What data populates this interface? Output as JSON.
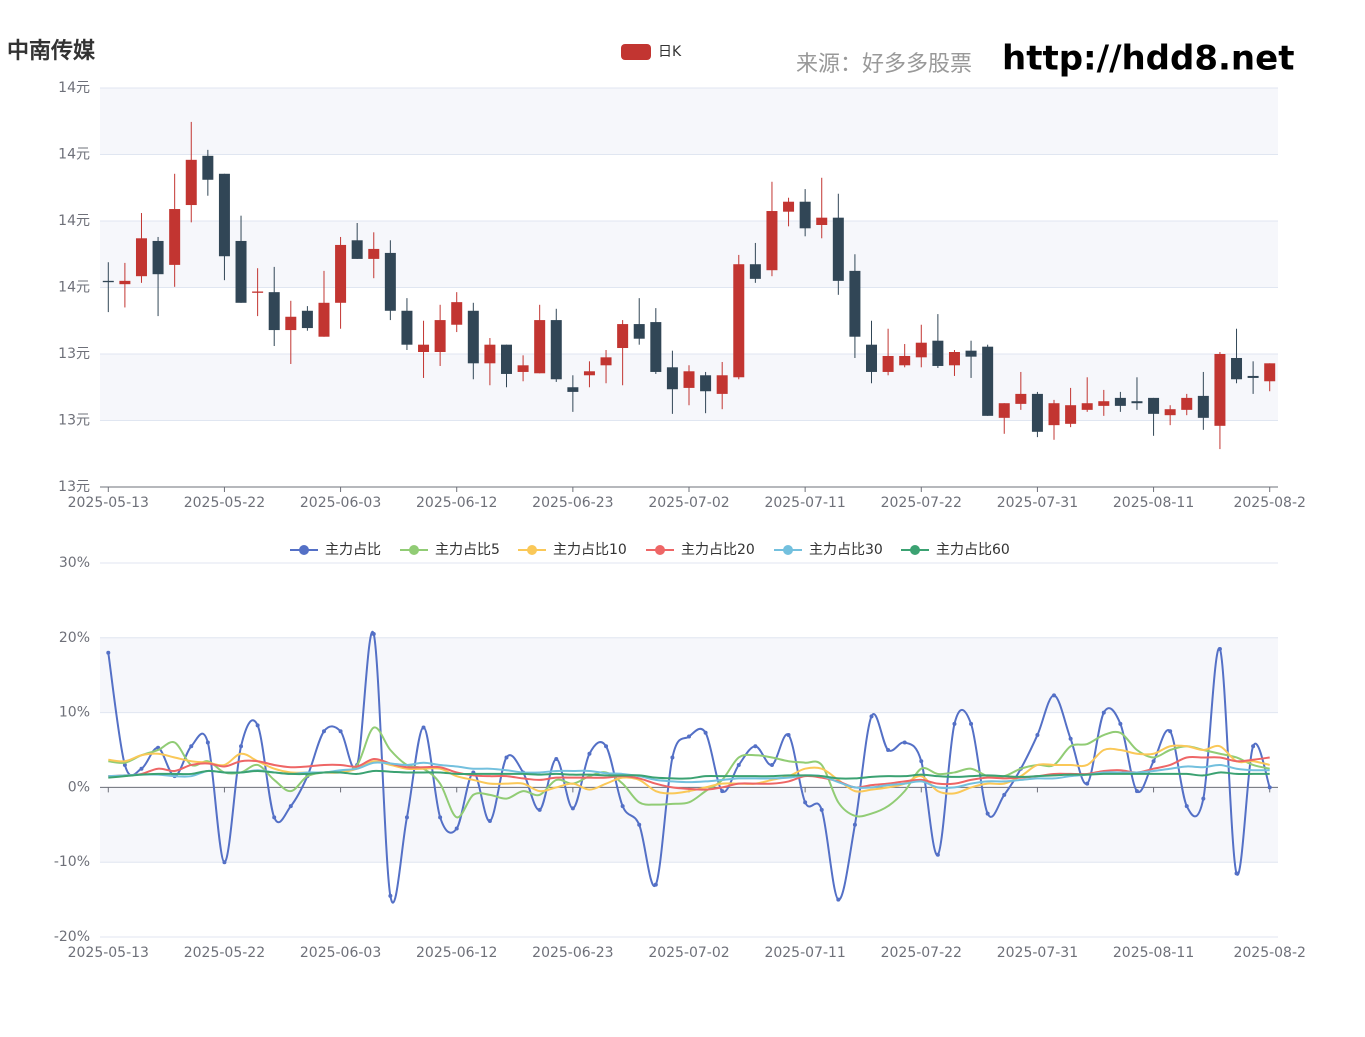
{
  "chart_data": [
    {
      "type": "candlestick",
      "title": "中南传媒",
      "source": "来源：好多多股票",
      "watermark": "http://hdd8.net",
      "categories": [
        "2025-05-13",
        null,
        null,
        null,
        null,
        null,
        null,
        "2025-05-22",
        null,
        null,
        null,
        null,
        null,
        null,
        "2025-06-03",
        null,
        null,
        null,
        null,
        null,
        null,
        "2025-06-12",
        null,
        null,
        null,
        null,
        null,
        null,
        "2025-06-23",
        null,
        null,
        null,
        null,
        null,
        null,
        "2025-07-02",
        null,
        null,
        null,
        null,
        null,
        null,
        "2025-07-11",
        null,
        null,
        null,
        null,
        null,
        null,
        "2025-07-22",
        null,
        null,
        null,
        null,
        null,
        null,
        "2025-07-31",
        null,
        null,
        null,
        null,
        null,
        null,
        "2025-08-11",
        null,
        null,
        null,
        null,
        null,
        null,
        "2025-08-2"
      ],
      "series": [
        {
          "name": "日K",
          "up_color": "#c23531",
          "down_color": "#314656",
          "open": [
            13.51,
            13.505,
            13.517,
            13.57,
            13.534,
            13.624,
            13.698,
            13.671,
            13.57,
            13.492,
            13.493,
            13.436,
            13.465,
            13.426,
            13.477,
            13.571,
            13.543,
            13.552,
            13.465,
            13.403,
            13.403,
            13.444,
            13.465,
            13.386,
            13.414,
            13.373,
            13.371,
            13.451,
            13.35,
            13.368,
            13.383,
            13.409,
            13.445,
            13.448,
            13.38,
            13.349,
            13.368,
            13.34,
            13.365,
            13.535,
            13.526,
            13.614,
            13.629,
            13.594,
            13.605,
            13.525,
            13.414,
            13.373,
            13.383,
            13.395,
            13.42,
            13.383,
            13.405,
            13.411,
            13.304,
            13.325,
            13.34,
            13.293,
            13.295,
            13.316,
            13.322,
            13.334,
            13.329,
            13.334,
            13.308,
            13.316,
            13.337,
            13.292,
            13.394,
            13.367,
            13.359
          ],
          "close": [
            13.508,
            13.51,
            13.574,
            13.52,
            13.618,
            13.692,
            13.662,
            13.547,
            13.477,
            13.494,
            13.436,
            13.456,
            13.439,
            13.477,
            13.564,
            13.543,
            13.558,
            13.465,
            13.414,
            13.414,
            13.451,
            13.478,
            13.386,
            13.414,
            13.37,
            13.383,
            13.451,
            13.362,
            13.343,
            13.374,
            13.395,
            13.445,
            13.423,
            13.373,
            13.347,
            13.374,
            13.344,
            13.368,
            13.535,
            13.513,
            13.615,
            13.629,
            13.589,
            13.605,
            13.51,
            13.426,
            13.373,
            13.397,
            13.397,
            13.417,
            13.382,
            13.403,
            13.396,
            13.307,
            13.326,
            13.34,
            13.283,
            13.326,
            13.323,
            13.326,
            13.329,
            13.322,
            13.326,
            13.31,
            13.317,
            13.334,
            13.304,
            13.4,
            13.362,
            13.364,
            13.386
          ],
          "high": [
            13.538,
            13.537,
            13.612,
            13.576,
            13.671,
            13.749,
            13.707,
            13.671,
            13.608,
            13.529,
            13.531,
            13.48,
            13.472,
            13.525,
            13.576,
            13.597,
            13.583,
            13.571,
            13.484,
            13.45,
            13.474,
            13.493,
            13.477,
            13.424,
            13.414,
            13.398,
            13.474,
            13.468,
            13.368,
            13.389,
            13.406,
            13.451,
            13.484,
            13.469,
            13.405,
            13.383,
            13.373,
            13.388,
            13.549,
            13.567,
            13.659,
            13.635,
            13.648,
            13.665,
            13.641,
            13.55,
            13.45,
            13.438,
            13.415,
            13.444,
            13.46,
            13.406,
            13.42,
            13.414,
            13.326,
            13.373,
            13.343,
            13.331,
            13.349,
            13.365,
            13.346,
            13.343,
            13.365,
            13.334,
            13.323,
            13.34,
            13.373,
            13.403,
            13.438,
            13.389,
            13.386
          ],
          "low": [
            13.463,
            13.47,
            13.507,
            13.457,
            13.501,
            13.598,
            13.638,
            13.511,
            13.477,
            13.457,
            13.412,
            13.385,
            13.435,
            13.426,
            13.438,
            13.543,
            13.514,
            13.451,
            13.406,
            13.364,
            13.382,
            13.433,
            13.362,
            13.353,
            13.35,
            13.359,
            13.371,
            13.358,
            13.313,
            13.35,
            13.356,
            13.353,
            13.414,
            13.37,
            13.31,
            13.323,
            13.311,
            13.317,
            13.362,
            13.507,
            13.517,
            13.592,
            13.577,
            13.574,
            13.489,
            13.394,
            13.356,
            13.368,
            13.38,
            13.38,
            13.379,
            13.367,
            13.364,
            13.307,
            13.28,
            13.316,
            13.275,
            13.271,
            13.29,
            13.313,
            13.307,
            13.313,
            13.316,
            13.277,
            13.293,
            13.308,
            13.286,
            13.257,
            13.356,
            13.34,
            13.344
          ]
        }
      ],
      "ylim": [
        13.2,
        13.8
      ],
      "yticks": [
        {
          "value": 13.2,
          "label": "13元"
        },
        {
          "value": 13.3,
          "label": "13元"
        },
        {
          "value": 13.4,
          "label": "13元"
        },
        {
          "value": 13.5,
          "label": "14元"
        },
        {
          "value": 13.6,
          "label": "14元"
        },
        {
          "value": 13.7,
          "label": "14元"
        },
        {
          "value": 13.8,
          "label": "14元"
        }
      ],
      "split_area": true
    },
    {
      "type": "line",
      "smooth": true,
      "categories": [
        "2025-05-13",
        null,
        null,
        null,
        null,
        null,
        null,
        "2025-05-22",
        null,
        null,
        null,
        null,
        null,
        null,
        "2025-06-03",
        null,
        null,
        null,
        null,
        null,
        null,
        "2025-06-12",
        null,
        null,
        null,
        null,
        null,
        null,
        "2025-06-23",
        null,
        null,
        null,
        null,
        null,
        null,
        "2025-07-02",
        null,
        null,
        null,
        null,
        null,
        null,
        "2025-07-11",
        null,
        null,
        null,
        null,
        null,
        null,
        "2025-07-22",
        null,
        null,
        null,
        null,
        null,
        null,
        "2025-07-31",
        null,
        null,
        null,
        null,
        null,
        null,
        "2025-08-11",
        null,
        null,
        null,
        null,
        null,
        null,
        "2025-08-2"
      ],
      "series": [
        {
          "name": "主力占比",
          "color": "#5470c6",
          "values": [
            18,
            3,
            2.5,
            5.3,
            1.5,
            5.5,
            6,
            -10,
            5.5,
            8.3,
            -4,
            -2.5,
            1.5,
            7.5,
            7.5,
            3,
            20.5,
            -14.5,
            -4,
            8,
            -4,
            -5.5,
            2,
            -4.5,
            4,
            2,
            -3,
            3.8,
            -2.8,
            4.5,
            5.5,
            -2.5,
            -5,
            -13,
            4,
            6.8,
            7.3,
            -0.5,
            3,
            5.5,
            3,
            7,
            -2,
            -3,
            -15,
            -5,
            9.5,
            5,
            6,
            3.5,
            -9,
            8.5,
            8.5,
            -3.5,
            -1,
            2.5,
            7,
            12.3,
            6.5,
            0.5,
            10,
            8.5,
            -0.5,
            3.5,
            7.5,
            -2.5,
            -1.5,
            18.5,
            -11.5,
            5.5,
            0
          ]
        },
        {
          "name": "主力占比5",
          "color": "#91cc75",
          "values": [
            3.5,
            3.3,
            4.3,
            5,
            6,
            3,
            3.5,
            2,
            2,
            3,
            1,
            -0.5,
            1.5,
            2,
            2.2,
            3,
            8,
            5,
            3,
            2.5,
            0.5,
            -4,
            -1,
            -1,
            -1.5,
            -0.5,
            -1,
            1,
            0.5,
            1.5,
            2,
            0.5,
            -2,
            -2.3,
            -2.2,
            -2,
            -0.5,
            1,
            4,
            4.3,
            4,
            3.5,
            3.3,
            3,
            -2,
            -3.8,
            -3.5,
            -2.5,
            -0.5,
            2.5,
            1.8,
            2,
            2.5,
            1.5,
            1.5,
            2.5,
            3,
            3,
            5.5,
            5.8,
            7,
            7.3,
            5,
            4,
            5,
            5.5,
            5,
            4.5,
            4,
            3,
            2.5
          ]
        },
        {
          "name": "主力占比10",
          "color": "#fac858",
          "values": [
            3.7,
            3.5,
            4.3,
            4.5,
            4,
            3.5,
            3.3,
            3,
            4.5,
            3.5,
            2.5,
            2,
            2,
            2,
            2,
            2.5,
            3.5,
            3,
            2.5,
            2.5,
            2.5,
            1.5,
            1,
            0.5,
            0.5,
            0.5,
            -0.5,
            0,
            0.5,
            -0.3,
            0.5,
            1.3,
            1,
            -0.5,
            -0.8,
            -0.5,
            0,
            0.5,
            0.5,
            0.5,
            1,
            1.5,
            2.5,
            2.5,
            1,
            -0.5,
            -0.3,
            0,
            0.5,
            1.5,
            -0.5,
            -0.8,
            0,
            0.5,
            0.5,
            1.5,
            3,
            3,
            3,
            3,
            5,
            5,
            4.5,
            4.5,
            5.5,
            5.5,
            5,
            5.5,
            3.5,
            3.5,
            3
          ]
        },
        {
          "name": "主力占比20",
          "color": "#ee6666",
          "values": [
            1.5,
            1.6,
            1.8,
            2.5,
            2.2,
            3,
            3.2,
            2.8,
            3.5,
            3.5,
            3,
            2.7,
            2.8,
            3,
            3,
            2.8,
            3.8,
            3.2,
            2.7,
            2.7,
            2.7,
            2,
            1.6,
            1.5,
            1.5,
            1.2,
            1,
            1.3,
            1.3,
            1.3,
            1.3,
            1.5,
            1.2,
            0.5,
            0,
            -0.2,
            -0.3,
            0,
            0.5,
            0.5,
            0.5,
            0.8,
            1.5,
            1.3,
            0.8,
            0,
            0.3,
            0.5,
            0.8,
            1,
            0.5,
            0.5,
            1,
            1.3,
            1.2,
            1.3,
            1.5,
            1.8,
            1.8,
            1.8,
            2.2,
            2.3,
            2,
            2.5,
            3,
            4,
            4,
            4,
            3.5,
            3.7,
            4
          ]
        },
        {
          "name": "主力占比30",
          "color": "#73c0de",
          "values": [
            1.5,
            1.6,
            1.7,
            1.7,
            1.5,
            1.5,
            2.2,
            2,
            2,
            2.3,
            2,
            1.8,
            2,
            2,
            2.3,
            2.5,
            3.3,
            3.2,
            3,
            3.3,
            3,
            2.8,
            2.5,
            2.5,
            2.3,
            2,
            2,
            2.2,
            2.2,
            2.2,
            1.9,
            1.8,
            1.5,
            1,
            0.8,
            0.7,
            0.8,
            1,
            1.2,
            1.2,
            1.2,
            1.3,
            1.6,
            1.5,
            0.7,
            0,
            0,
            0.3,
            0.5,
            0.8,
            0,
            0,
            0.5,
            0.8,
            0.8,
            1,
            1.2,
            1.2,
            1.5,
            1.7,
            2,
            2,
            2,
            2.2,
            2.5,
            2.8,
            2.7,
            3,
            2.5,
            2.3,
            2.3
          ]
        },
        {
          "name": "主力占比60",
          "color": "#3ba272",
          "values": [
            1.3,
            1.5,
            1.7,
            1.8,
            1.8,
            1.8,
            2.2,
            2,
            2,
            2.2,
            2,
            1.8,
            1.8,
            2,
            2,
            1.8,
            2.2,
            2.1,
            2,
            2,
            2,
            1.8,
            1.8,
            1.8,
            1.8,
            1.8,
            1.7,
            1.8,
            1.7,
            1.7,
            1.6,
            1.6,
            1.6,
            1.3,
            1.2,
            1.2,
            1.5,
            1.5,
            1.5,
            1.5,
            1.5,
            1.6,
            1.6,
            1.5,
            1.2,
            1.2,
            1.4,
            1.5,
            1.5,
            1.7,
            1.5,
            1.4,
            1.5,
            1.6,
            1.5,
            1.4,
            1.5,
            1.6,
            1.7,
            1.7,
            1.8,
            1.8,
            1.8,
            1.8,
            1.8,
            1.8,
            1.6,
            2,
            1.8,
            1.8,
            1.8
          ]
        }
      ],
      "ylim": [
        -20,
        30
      ],
      "yticks": [
        {
          "value": -20,
          "label": "-20%"
        },
        {
          "value": -10,
          "label": "-10%"
        },
        {
          "value": 0,
          "label": "0%"
        },
        {
          "value": 10,
          "label": "10%"
        },
        {
          "value": 20,
          "label": "20%"
        },
        {
          "value": 30,
          "label": "30%"
        }
      ]
    }
  ]
}
